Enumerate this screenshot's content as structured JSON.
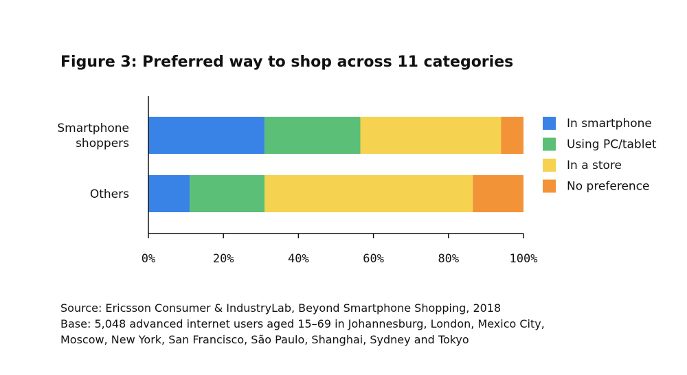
{
  "chart_data": {
    "type": "bar",
    "orientation": "horizontal",
    "stacked": true,
    "title": "Figure 3: Preferred way to shop across 11 categories",
    "categories": [
      [
        "Smartphone",
        "shoppers"
      ],
      [
        "Others"
      ]
    ],
    "series": [
      {
        "name": "In smartphone",
        "color": "#3a83e6",
        "values": [
          31,
          11
        ]
      },
      {
        "name": "Using PC/tablet",
        "color": "#5cbf77",
        "values": [
          25.5,
          20
        ]
      },
      {
        "name": "In a store",
        "color": "#f5d24f",
        "values": [
          37.5,
          55.5
        ]
      },
      {
        "name": "No preference",
        "color": "#f39338",
        "values": [
          6,
          13.5
        ]
      }
    ],
    "xlim": [
      0,
      100
    ],
    "xticks": [
      "0%",
      "20%",
      "40%",
      "60%",
      "80%",
      "100%"
    ],
    "legend_position": "right",
    "grid": false
  },
  "source_lines": [
    "Source: Ericsson Consumer & IndustryLab, Beyond Smartphone Shopping, 2018",
    "Base: 5,048 advanced internet users aged 15–69 in Johannesburg, London, Mexico City,",
    "Moscow, New York, San Francisco, São Paulo, Shanghai, Sydney and Tokyo"
  ]
}
